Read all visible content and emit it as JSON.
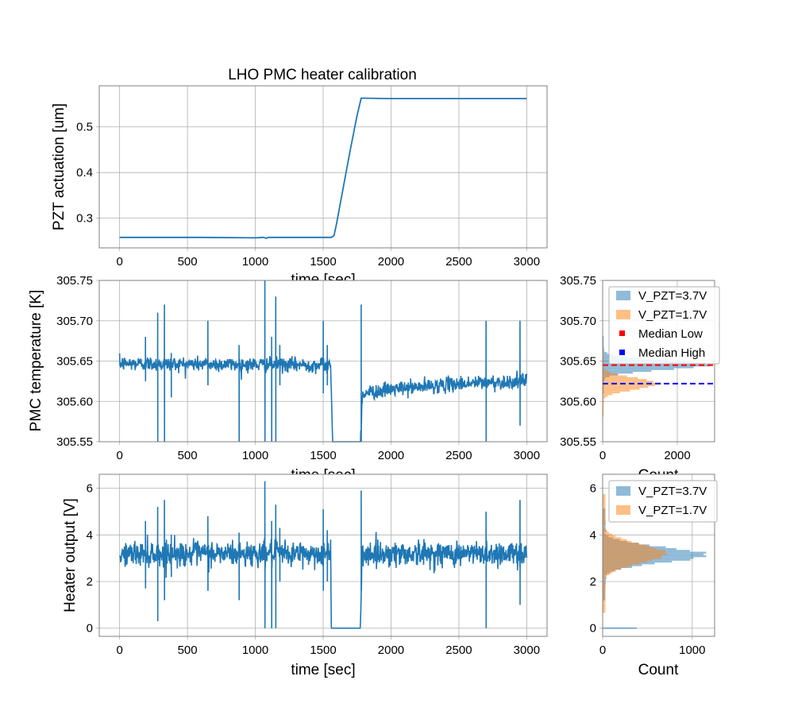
{
  "figure": {
    "title": "LHO PMC heater calibration",
    "colors": {
      "blue": "#1f77b4",
      "orange": "#ff7f0e",
      "median_low": "#ff0000",
      "median_high": "#0000ff"
    }
  },
  "chart_data": [
    {
      "id": "pzt",
      "type": "line",
      "title": "LHO PMC heater calibration",
      "xlabel": "time [sec]",
      "ylabel": "PZT actuation [um]",
      "xlim": [
        -150,
        3150
      ],
      "ylim": [
        0.235,
        0.59
      ],
      "xticks": [
        0,
        500,
        1000,
        1500,
        2000,
        2500,
        3000
      ],
      "yticks": [
        0.3,
        0.4,
        0.5
      ],
      "ytick_labels": [
        "0.3",
        "0.4",
        "0.5"
      ],
      "grid": true,
      "series": [
        {
          "x": [
            0,
            300,
            600,
            1000,
            1060,
            1080,
            1100,
            1560,
            1580,
            1600,
            1650,
            1700,
            1750,
            1780,
            2000,
            2500,
            3000
          ],
          "y": [
            0.258,
            0.258,
            0.258,
            0.257,
            0.258,
            0.256,
            0.258,
            0.258,
            0.262,
            0.29,
            0.37,
            0.45,
            0.525,
            0.563,
            0.562,
            0.562,
            0.562
          ]
        }
      ]
    },
    {
      "id": "temp",
      "type": "line",
      "xlabel": "time [sec]",
      "ylabel": "PMC temperature [K]",
      "xlim": [
        -150,
        3150
      ],
      "ylim": [
        305.55,
        305.75
      ],
      "xticks": [
        0,
        500,
        1000,
        1500,
        2000,
        2500,
        3000
      ],
      "yticks": [
        305.55,
        305.6,
        305.65,
        305.7,
        305.75
      ],
      "ytick_labels": [
        "305.55",
        "305.60",
        "305.65",
        "305.70",
        "305.75"
      ],
      "grid": true,
      "series": [
        {
          "baseline": [
            [
              0,
              305.647
            ],
            [
              1550,
              305.645
            ],
            [
              1555,
              305.645
            ],
            [
              1570,
              305.55
            ],
            [
              1775,
              305.55
            ],
            [
              1790,
              305.61
            ],
            [
              2000,
              305.615
            ],
            [
              2500,
              305.622
            ],
            [
              3000,
              305.625
            ]
          ],
          "noise": 0.005,
          "spikes": [
            [
              190,
              305.625,
              305.68
            ],
            [
              280,
              305.55,
              305.71
            ],
            [
              330,
              305.55,
              305.72
            ],
            [
              380,
              305.605,
              305.66
            ],
            [
              650,
              305.62,
              305.7
            ],
            [
              880,
              305.55,
              305.67
            ],
            [
              1070,
              305.55,
              305.75
            ],
            [
              1120,
              305.55,
              305.68
            ],
            [
              1150,
              305.55,
              305.73
            ],
            [
              1180,
              305.62,
              305.67
            ],
            [
              1500,
              305.61,
              305.7
            ],
            [
              1530,
              305.62,
              305.67
            ],
            [
              1780,
              305.55,
              305.72
            ],
            [
              2700,
              305.55,
              305.7
            ],
            [
              2950,
              305.57,
              305.7
            ]
          ]
        }
      ]
    },
    {
      "id": "temp_hist",
      "type": "bar",
      "xlabel": "Count",
      "xlim": [
        0,
        3000
      ],
      "ylim": [
        305.55,
        305.75
      ],
      "xticks": [
        0,
        2000
      ],
      "yticks": [
        305.55,
        305.6,
        305.65,
        305.7,
        305.75
      ],
      "ytick_labels": [
        "305.55",
        "305.60",
        "305.65",
        "305.70",
        "305.75"
      ],
      "grid": true,
      "legend": {
        "position": "upper right",
        "entries": [
          "V_PZT=3.7V",
          "V_PZT=1.7V",
          "Median Low",
          "Median High"
        ]
      },
      "series": [
        {
          "name": "V_PZT=3.7V",
          "center": 305.645,
          "sigma": 0.006,
          "peak": 2800
        },
        {
          "name": "V_PZT=1.7V",
          "center": 305.622,
          "sigma": 0.007,
          "peak": 1500
        }
      ],
      "median_low": 305.645,
      "median_high": 305.622
    },
    {
      "id": "heater",
      "type": "line",
      "xlabel": "time [sec]",
      "ylabel": "Heater output [V]",
      "xlim": [
        -150,
        3150
      ],
      "ylim": [
        -0.35,
        6.6
      ],
      "xticks": [
        0,
        500,
        1000,
        1500,
        2000,
        2500,
        3000
      ],
      "yticks": [
        0,
        2,
        4,
        6
      ],
      "ytick_labels": [
        "0",
        "2",
        "4",
        "6"
      ],
      "grid": true,
      "series": [
        {
          "baseline": [
            [
              0,
              3.2
            ],
            [
              1550,
              3.2
            ],
            [
              1555,
              3.2
            ],
            [
              1560,
              0.0
            ],
            [
              1775,
              0.0
            ],
            [
              1785,
              3.2
            ],
            [
              3000,
              3.2
            ]
          ],
          "noise": 0.3,
          "spikes": [
            [
              190,
              1.7,
              4.6
            ],
            [
              280,
              0.3,
              5.2
            ],
            [
              330,
              1.2,
              5.5
            ],
            [
              380,
              2.2,
              4.0
            ],
            [
              650,
              1.6,
              4.8
            ],
            [
              880,
              1.2,
              4.1
            ],
            [
              1070,
              0.0,
              6.3
            ],
            [
              1120,
              0.0,
              4.6
            ],
            [
              1150,
              0.0,
              5.3
            ],
            [
              1180,
              2.0,
              4.3
            ],
            [
              1500,
              1.6,
              5.1
            ],
            [
              1530,
              2.0,
              4.2
            ],
            [
              1780,
              2.8,
              5.9
            ],
            [
              2700,
              0.0,
              5.0
            ],
            [
              2950,
              1.0,
              5.5
            ]
          ]
        }
      ]
    },
    {
      "id": "heater_hist",
      "type": "bar",
      "xlabel": "Count",
      "xlim": [
        0,
        1250
      ],
      "ylim": [
        -0.35,
        6.6
      ],
      "xticks": [
        0,
        1000
      ],
      "yticks": [
        0,
        2,
        4,
        6
      ],
      "ytick_labels": [
        "0",
        "2",
        "4",
        "6"
      ],
      "grid": true,
      "legend": {
        "position": "upper right",
        "entries": [
          "V_PZT=3.7V",
          "V_PZT=1.7V"
        ]
      },
      "series": [
        {
          "name": "V_PZT=3.7V",
          "center": 3.15,
          "sigma": 0.33,
          "peak": 1150
        },
        {
          "name": "V_PZT=1.7V",
          "center": 3.2,
          "sigma": 0.42,
          "peak": 700
        }
      ],
      "zero_bin": 380
    }
  ]
}
